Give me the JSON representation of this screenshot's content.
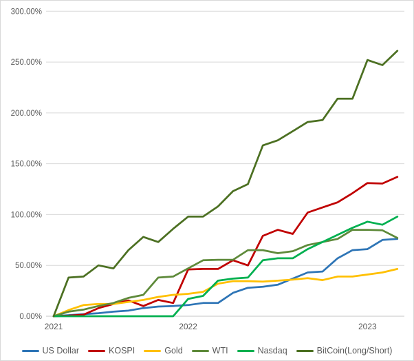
{
  "chart_data": {
    "type": "line",
    "title": "",
    "xlabel": "",
    "ylabel": "",
    "ylim": [
      0,
      300
    ],
    "grid": true,
    "legend_position": "bottom",
    "n_points": 24,
    "y_axis": {
      "ticks": [
        {
          "value": 0,
          "label": "0.00%"
        },
        {
          "value": 50,
          "label": "50.00%"
        },
        {
          "value": 100,
          "label": "100.00%"
        },
        {
          "value": 150,
          "label": "150.00%"
        },
        {
          "value": 200,
          "label": "200.00%"
        },
        {
          "value": 250,
          "label": "250.00%"
        },
        {
          "value": 300,
          "label": "300.00%"
        }
      ]
    },
    "x_axis": {
      "tick_labels": [
        {
          "at": 0,
          "text": "2021"
        },
        {
          "at": 9,
          "text": "2022"
        },
        {
          "at": 21,
          "text": "2023"
        }
      ]
    },
    "series": [
      {
        "name": "US Dollar",
        "color": "#2E75B6",
        "values": [
          0,
          1,
          2,
          3,
          4.5,
          5.5,
          8,
          9.5,
          10,
          11,
          13,
          13,
          23,
          28,
          29,
          31,
          37,
          43,
          44,
          57,
          65,
          66,
          75,
          76
        ]
      },
      {
        "name": "KOSPI",
        "color": "#C00000",
        "values": [
          0,
          0.5,
          1.5,
          8,
          12,
          15.5,
          10,
          16,
          13,
          46,
          46.5,
          46.5,
          55,
          50,
          79,
          85,
          81,
          102,
          107,
          112,
          121,
          131,
          130.5,
          137
        ]
      },
      {
        "name": "Gold",
        "color": "#FFC000",
        "values": [
          0,
          6,
          11,
          12,
          12,
          14,
          16,
          19,
          21,
          22,
          24,
          32,
          34.5,
          34.5,
          34,
          35,
          36,
          37.5,
          35.5,
          39,
          39,
          41,
          43,
          46.5
        ]
      },
      {
        "name": "WTI",
        "color": "#5E8A3A",
        "values": [
          0,
          4.5,
          6.5,
          10,
          13,
          18,
          21,
          38,
          39,
          47,
          55,
          55.5,
          55.5,
          65,
          65,
          62,
          64,
          70,
          73,
          76,
          85,
          85,
          84.5,
          77
        ]
      },
      {
        "name": "Nasdaq",
        "color": "#00B050",
        "values": [
          0,
          0,
          0,
          0,
          0,
          0,
          0,
          0,
          0,
          17,
          20,
          35,
          37,
          38,
          55,
          57,
          57,
          66,
          73,
          80,
          87,
          93,
          90,
          98
        ]
      },
      {
        "name": "BitCoin(Long/Short)",
        "color": "#4C7022",
        "values": [
          0,
          38,
          39,
          50,
          47,
          65,
          78,
          73,
          86,
          98,
          98,
          108,
          123,
          130,
          168,
          173,
          182,
          191,
          193,
          214,
          214,
          252,
          247,
          261
        ]
      }
    ]
  }
}
